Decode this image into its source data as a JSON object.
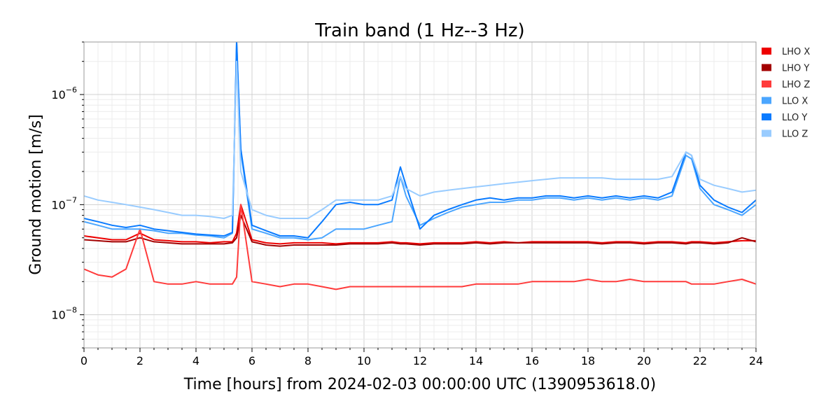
{
  "chart_data": {
    "type": "line",
    "title": "Train band (1 Hz--3 Hz)",
    "xlabel": "Time [hours] from 2024-02-03 00:00:00 UTC (1390953618.0)",
    "ylabel": "Ground motion [m/s]",
    "xlim": [
      0,
      24
    ],
    "ylim": [
      5e-09,
      3e-06
    ],
    "yscale": "log",
    "grid": true,
    "legend_position": "right",
    "x_ticks": [
      0,
      2,
      4,
      6,
      8,
      10,
      12,
      14,
      16,
      18,
      20,
      22,
      24
    ],
    "x_tick_labels": [
      "0",
      "2",
      "4",
      "6",
      "8",
      "10",
      "12",
      "14",
      "16",
      "18",
      "20",
      "22",
      "24"
    ],
    "y_ticks": [
      1e-08,
      1e-07,
      1e-06
    ],
    "y_tick_labels": [
      {
        "base": "10",
        "exp": "−8"
      },
      {
        "base": "10",
        "exp": "−7"
      },
      {
        "base": "10",
        "exp": "−6"
      }
    ],
    "x": [
      0,
      0.5,
      1,
      1.5,
      2,
      2.5,
      3,
      3.5,
      4,
      4.5,
      5,
      5.3,
      5.45,
      5.6,
      6,
      6.5,
      7,
      7.5,
      8,
      8.5,
      9,
      9.5,
      10,
      10.5,
      11,
      11.3,
      11.5,
      12,
      12.5,
      13,
      13.5,
      14,
      14.5,
      15,
      15.5,
      16,
      16.5,
      17,
      17.5,
      18,
      18.5,
      19,
      19.5,
      20,
      20.5,
      21,
      21.5,
      21.7,
      22,
      22.5,
      23,
      23.5,
      24
    ],
    "series": [
      {
        "name": "LHO X",
        "color": "#ee0000",
        "values": [
          5.2e-08,
          5e-08,
          4.8e-08,
          4.8e-08,
          5.5e-08,
          4.8e-08,
          4.7e-08,
          4.6e-08,
          4.6e-08,
          4.5e-08,
          4.6e-08,
          4.6e-08,
          5.5e-08,
          1e-07,
          4.8e-08,
          4.5e-08,
          4.4e-08,
          4.5e-08,
          4.5e-08,
          4.5e-08,
          4.4e-08,
          4.5e-08,
          4.5e-08,
          4.5e-08,
          4.6e-08,
          4.5e-08,
          4.5e-08,
          4.4e-08,
          4.5e-08,
          4.5e-08,
          4.5e-08,
          4.6e-08,
          4.5e-08,
          4.6e-08,
          4.5e-08,
          4.6e-08,
          4.6e-08,
          4.6e-08,
          4.6e-08,
          4.6e-08,
          4.5e-08,
          4.6e-08,
          4.6e-08,
          4.5e-08,
          4.6e-08,
          4.6e-08,
          4.5e-08,
          4.6e-08,
          4.6e-08,
          4.5e-08,
          4.6e-08,
          4.7e-08,
          4.7e-08
        ]
      },
      {
        "name": "LHO Y",
        "color": "#a30000",
        "values": [
          4.8e-08,
          4.7e-08,
          4.6e-08,
          4.6e-08,
          5e-08,
          4.6e-08,
          4.5e-08,
          4.4e-08,
          4.4e-08,
          4.4e-08,
          4.4e-08,
          4.5e-08,
          5e-08,
          8e-08,
          4.6e-08,
          4.3e-08,
          4.2e-08,
          4.3e-08,
          4.3e-08,
          4.3e-08,
          4.3e-08,
          4.4e-08,
          4.4e-08,
          4.4e-08,
          4.5e-08,
          4.4e-08,
          4.4e-08,
          4.3e-08,
          4.4e-08,
          4.4e-08,
          4.4e-08,
          4.5e-08,
          4.4e-08,
          4.5e-08,
          4.5e-08,
          4.5e-08,
          4.5e-08,
          4.5e-08,
          4.5e-08,
          4.5e-08,
          4.4e-08,
          4.5e-08,
          4.5e-08,
          4.4e-08,
          4.5e-08,
          4.5e-08,
          4.4e-08,
          4.5e-08,
          4.5e-08,
          4.4e-08,
          4.5e-08,
          5e-08,
          4.6e-08
        ]
      },
      {
        "name": "LHO Z",
        "color": "#ff3b3b",
        "values": [
          2.6e-08,
          2.3e-08,
          2.2e-08,
          2.6e-08,
          6e-08,
          2e-08,
          1.9e-08,
          1.9e-08,
          2e-08,
          1.9e-08,
          1.9e-08,
          1.9e-08,
          2.2e-08,
          1e-07,
          2e-08,
          1.9e-08,
          1.8e-08,
          1.9e-08,
          1.9e-08,
          1.8e-08,
          1.7e-08,
          1.8e-08,
          1.8e-08,
          1.8e-08,
          1.8e-08,
          1.8e-08,
          1.8e-08,
          1.8e-08,
          1.8e-08,
          1.8e-08,
          1.8e-08,
          1.9e-08,
          1.9e-08,
          1.9e-08,
          1.9e-08,
          2e-08,
          2e-08,
          2e-08,
          2e-08,
          2.1e-08,
          2e-08,
          2e-08,
          2.1e-08,
          2e-08,
          2e-08,
          2e-08,
          2e-08,
          1.9e-08,
          1.9e-08,
          1.9e-08,
          2e-08,
          2.1e-08,
          1.9e-08
        ]
      },
      {
        "name": "LLO X",
        "color": "#4ba6ff",
        "values": [
          7e-08,
          6.5e-08,
          6e-08,
          6e-08,
          6e-08,
          5.8e-08,
          5.5e-08,
          5.5e-08,
          5.3e-08,
          5.2e-08,
          5e-08,
          5.5e-08,
          3e-06,
          3e-07,
          6e-08,
          5.5e-08,
          5e-08,
          5e-08,
          4.8e-08,
          5e-08,
          6e-08,
          6e-08,
          6e-08,
          6.5e-08,
          7e-08,
          1.8e-07,
          1.2e-07,
          6.5e-08,
          7.5e-08,
          8.5e-08,
          9.5e-08,
          1e-07,
          1.05e-07,
          1.05e-07,
          1.1e-07,
          1.1e-07,
          1.15e-07,
          1.15e-07,
          1.1e-07,
          1.15e-07,
          1.1e-07,
          1.15e-07,
          1.1e-07,
          1.15e-07,
          1.1e-07,
          1.2e-07,
          2.8e-07,
          2.6e-07,
          1.4e-07,
          1e-07,
          9e-08,
          8e-08,
          1e-07
        ]
      },
      {
        "name": "LLO Y",
        "color": "#0a7bff",
        "values": [
          7.5e-08,
          7e-08,
          6.5e-08,
          6.2e-08,
          6.5e-08,
          6e-08,
          5.8e-08,
          5.6e-08,
          5.4e-08,
          5.3e-08,
          5.2e-08,
          5.6e-08,
          3e-06,
          3.2e-07,
          6.5e-08,
          5.8e-08,
          5.2e-08,
          5.2e-08,
          5e-08,
          7e-08,
          1e-07,
          1.05e-07,
          1e-07,
          1e-07,
          1.1e-07,
          2.2e-07,
          1.5e-07,
          6e-08,
          8e-08,
          9e-08,
          1e-07,
          1.1e-07,
          1.15e-07,
          1.1e-07,
          1.15e-07,
          1.15e-07,
          1.2e-07,
          1.2e-07,
          1.15e-07,
          1.2e-07,
          1.15e-07,
          1.2e-07,
          1.15e-07,
          1.2e-07,
          1.15e-07,
          1.3e-07,
          3e-07,
          2.8e-07,
          1.5e-07,
          1.1e-07,
          9.5e-08,
          8.5e-08,
          1.1e-07
        ]
      },
      {
        "name": "LLO Z",
        "color": "#99ccff",
        "values": [
          1.2e-07,
          1.1e-07,
          1.05e-07,
          1e-07,
          9.5e-08,
          9e-08,
          8.5e-08,
          8e-08,
          8e-08,
          7.8e-08,
          7.5e-08,
          8e-08,
          2e-06,
          2e-07,
          9e-08,
          8e-08,
          7.5e-08,
          7.5e-08,
          7.5e-08,
          9e-08,
          1.1e-07,
          1.1e-07,
          1.1e-07,
          1.1e-07,
          1.2e-07,
          1.8e-07,
          1.4e-07,
          1.2e-07,
          1.3e-07,
          1.35e-07,
          1.4e-07,
          1.45e-07,
          1.5e-07,
          1.55e-07,
          1.6e-07,
          1.65e-07,
          1.7e-07,
          1.75e-07,
          1.75e-07,
          1.75e-07,
          1.75e-07,
          1.7e-07,
          1.7e-07,
          1.7e-07,
          1.7e-07,
          1.8e-07,
          3e-07,
          2.8e-07,
          1.7e-07,
          1.5e-07,
          1.4e-07,
          1.3e-07,
          1.35e-07
        ]
      }
    ]
  }
}
